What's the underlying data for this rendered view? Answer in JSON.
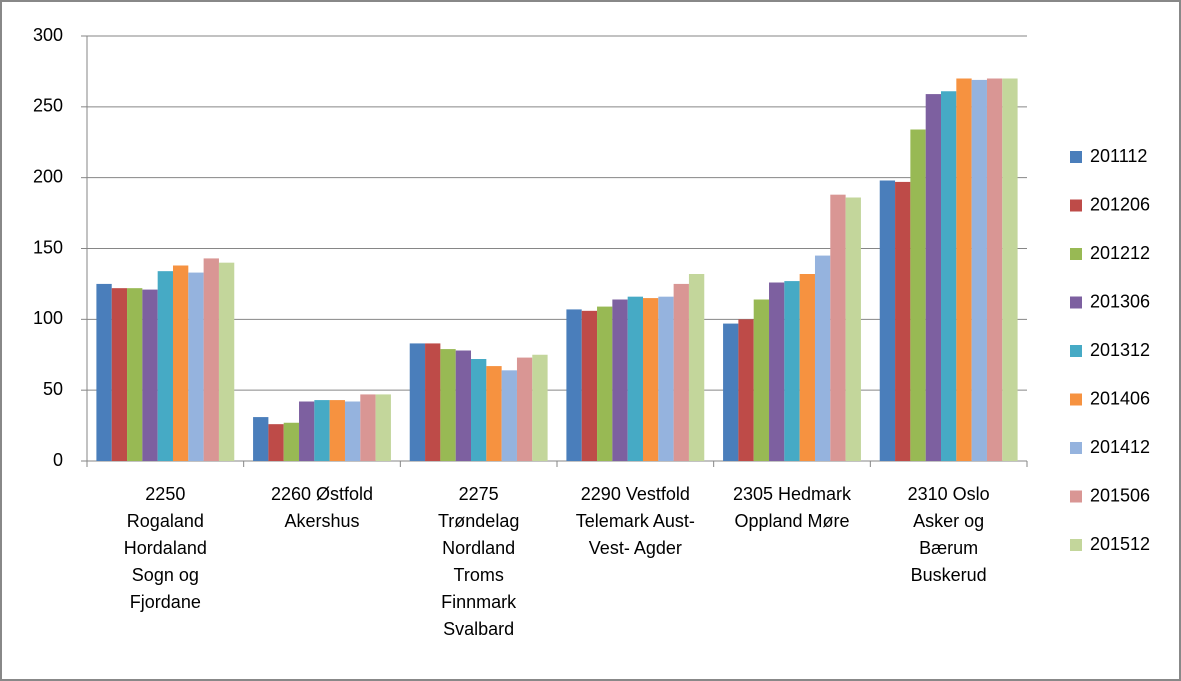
{
  "chart_data": {
    "type": "bar",
    "categories": [
      "2250 Rogaland Hordaland Sogn og Fjordane",
      "2260 Østfold Akershus",
      "2275 Trøndelag Nordland Troms Finnmark Svalbard",
      "2290 Vestfold Telemark Aust- Vest- Agder",
      "2305 Hedmark Oppland Møre",
      "2310 Oslo Asker og Bærum Buskerud"
    ],
    "series": [
      {
        "name": "201112",
        "color": "#4a7ebb",
        "values": [
          125,
          31,
          83,
          107,
          97,
          198
        ]
      },
      {
        "name": "201206",
        "color": "#be4b48",
        "values": [
          122,
          26,
          83,
          106,
          100,
          197
        ]
      },
      {
        "name": "201212",
        "color": "#98b954",
        "values": [
          122,
          27,
          79,
          109,
          114,
          234
        ]
      },
      {
        "name": "201306",
        "color": "#7d60a0",
        "values": [
          121,
          42,
          78,
          114,
          126,
          259
        ]
      },
      {
        "name": "201312",
        "color": "#46aac5",
        "values": [
          134,
          43,
          72,
          116,
          127,
          261
        ]
      },
      {
        "name": "201406",
        "color": "#f69240",
        "values": [
          138,
          43,
          67,
          115,
          132,
          270
        ]
      },
      {
        "name": "201412",
        "color": "#95b3de",
        "values": [
          133,
          42,
          64,
          116,
          145,
          269
        ]
      },
      {
        "name": "201506",
        "color": "#d99694",
        "values": [
          143,
          47,
          73,
          125,
          188,
          270
        ]
      },
      {
        "name": "201512",
        "color": "#c3d69b",
        "values": [
          140,
          47,
          75,
          132,
          186,
          270
        ]
      }
    ],
    "ylim": [
      0,
      300
    ],
    "yticks": [
      0,
      50,
      100,
      150,
      200,
      250,
      300
    ],
    "grid": true,
    "legend": "right"
  }
}
